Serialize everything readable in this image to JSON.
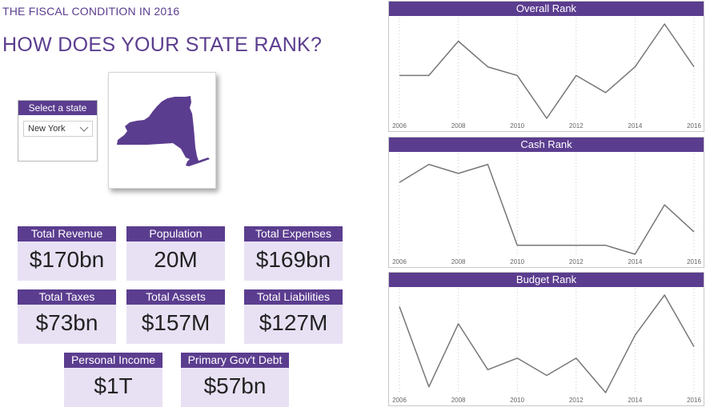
{
  "header": {
    "subtitle": "THE FISCAL CONDITION IN 2016",
    "title": "HOW DOES YOUR STATE RANK?"
  },
  "state_selector": {
    "label": "Select a state",
    "selected": "New York"
  },
  "map": {
    "state": "New York",
    "fill_color": "#5b3d8f"
  },
  "cards": [
    {
      "label": "Total Revenue",
      "value": "$170bn"
    },
    {
      "label": "Population",
      "value": "20M"
    },
    {
      "label": "Total Expenses",
      "value": "$169bn"
    },
    {
      "label": "Total Taxes",
      "value": "$73bn"
    },
    {
      "label": "Total Assets",
      "value": "$157M"
    },
    {
      "label": "Total Liabilities",
      "value": "$127M"
    },
    {
      "label": "Personal Income",
      "value": "$1T"
    },
    {
      "label": "Primary Gov't Debt",
      "value": "$57bn"
    }
  ],
  "colors": {
    "accent": "#5b3d8f",
    "card_bg": "#e8e1f4",
    "line": "#777777"
  },
  "chart_data": [
    {
      "type": "line",
      "title": "Overall Rank",
      "x": [
        2006,
        2007,
        2008,
        2009,
        2010,
        2011,
        2012,
        2013,
        2014,
        2015,
        2016
      ],
      "tick_labels": [
        "2006",
        "2008",
        "2010",
        "2012",
        "2014",
        "2016"
      ],
      "values": [
        6,
        6,
        2,
        5,
        6,
        11,
        6,
        8,
        5,
        0,
        5
      ],
      "inverted_y": true,
      "ylim": [
        0,
        11
      ],
      "y_axis_visible": false,
      "grid": "vertical dotted"
    },
    {
      "type": "line",
      "title": "Cash Rank",
      "x": [
        2006,
        2007,
        2008,
        2009,
        2010,
        2011,
        2012,
        2013,
        2014,
        2015,
        2016
      ],
      "tick_labels": [
        "2006",
        "2008",
        "2010",
        "2012",
        "2014",
        "2016"
      ],
      "values": [
        5,
        1,
        3,
        1,
        19,
        19,
        19,
        19,
        21,
        10,
        16
      ],
      "inverted_y": true,
      "ylim": [
        0,
        21
      ],
      "y_axis_visible": false,
      "grid": "vertical dotted"
    },
    {
      "type": "line",
      "title": "Budget Rank",
      "x": [
        2006,
        2007,
        2008,
        2009,
        2010,
        2011,
        2012,
        2013,
        2014,
        2015,
        2016
      ],
      "tick_labels": [
        "2006",
        "2008",
        "2010",
        "2012",
        "2014",
        "2016"
      ],
      "values": [
        2,
        16,
        5,
        13,
        11,
        14,
        11,
        17,
        7,
        0,
        9
      ],
      "inverted_y": true,
      "ylim": [
        0,
        17
      ],
      "y_axis_visible": false,
      "grid": "vertical dotted"
    }
  ]
}
